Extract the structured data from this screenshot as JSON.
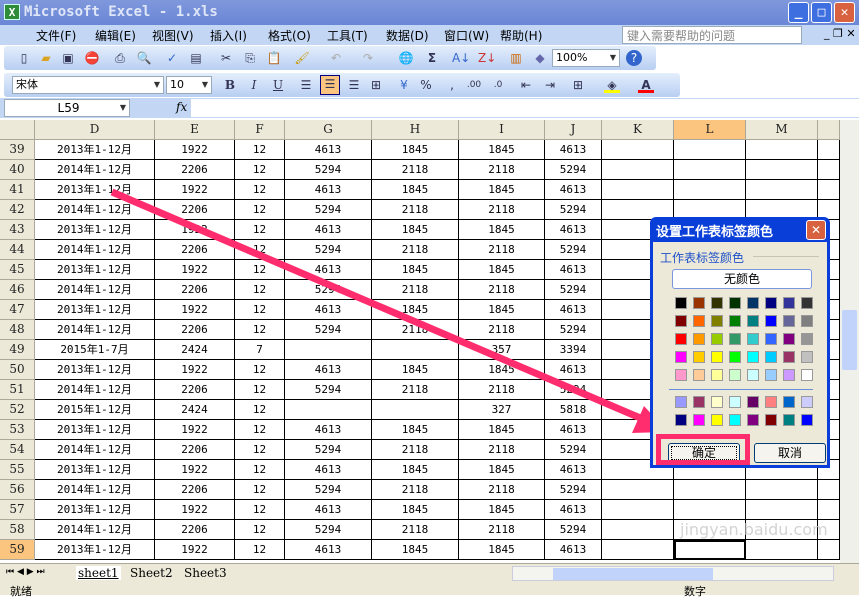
{
  "window": {
    "title": "Microsoft Excel - 1.xls",
    "minimize": "_",
    "maximize": "□",
    "close": "✕"
  },
  "menu": {
    "items": [
      "文件(F)",
      "编辑(E)",
      "视图(V)",
      "插入(I)",
      "格式(O)",
      "工具(T)",
      "数据(D)",
      "窗口(W)",
      "帮助(H)"
    ],
    "help_placeholder": "键入需要帮助的问题"
  },
  "toolbar": {
    "zoom": "100%",
    "font": "宋体",
    "size": "10",
    "bold": "B",
    "italic": "I",
    "underline": "U",
    "percent": "%",
    "comma": ",",
    "sum": "Σ"
  },
  "formula": {
    "name_box": "L59",
    "fx": "fx",
    "value": ""
  },
  "columns": [
    "D",
    "E",
    "F",
    "G",
    "H",
    "I",
    "J",
    "K",
    "L",
    "M"
  ],
  "active_column": "L",
  "rows": [
    {
      "n": "39",
      "c": [
        "2013年1-12月",
        "1922",
        "12",
        "4613",
        "1845",
        "1845",
        "4613"
      ]
    },
    {
      "n": "40",
      "c": [
        "2014年1-12月",
        "2206",
        "12",
        "5294",
        "2118",
        "2118",
        "5294"
      ]
    },
    {
      "n": "41",
      "c": [
        "2013年1-12月",
        "1922",
        "12",
        "4613",
        "1845",
        "1845",
        "4613"
      ]
    },
    {
      "n": "42",
      "c": [
        "2014年1-12月",
        "2206",
        "12",
        "5294",
        "2118",
        "2118",
        "5294"
      ]
    },
    {
      "n": "43",
      "c": [
        "2013年1-12月",
        "1922",
        "12",
        "4613",
        "1845",
        "1845",
        "4613"
      ]
    },
    {
      "n": "44",
      "c": [
        "2014年1-12月",
        "2206",
        "12",
        "5294",
        "2118",
        "2118",
        "5294"
      ]
    },
    {
      "n": "45",
      "c": [
        "2013年1-12月",
        "1922",
        "12",
        "4613",
        "1845",
        "1845",
        "4613"
      ]
    },
    {
      "n": "46",
      "c": [
        "2014年1-12月",
        "2206",
        "12",
        "5294",
        "2118",
        "2118",
        "5294"
      ]
    },
    {
      "n": "47",
      "c": [
        "2013年1-12月",
        "1922",
        "12",
        "4613",
        "1845",
        "1845",
        "4613"
      ]
    },
    {
      "n": "48",
      "c": [
        "2014年1-12月",
        "2206",
        "12",
        "5294",
        "2118",
        "2118",
        "5294"
      ]
    },
    {
      "n": "49",
      "c": [
        "2015年1-7月",
        "2424",
        "7",
        "",
        "",
        "357",
        "3394"
      ]
    },
    {
      "n": "50",
      "c": [
        "2013年1-12月",
        "1922",
        "12",
        "4613",
        "1845",
        "1845",
        "4613"
      ]
    },
    {
      "n": "51",
      "c": [
        "2014年1-12月",
        "2206",
        "12",
        "5294",
        "2118",
        "2118",
        "5294"
      ]
    },
    {
      "n": "52",
      "c": [
        "2015年1-12月",
        "2424",
        "12",
        "",
        "",
        "327",
        "5818"
      ]
    },
    {
      "n": "53",
      "c": [
        "2013年1-12月",
        "1922",
        "12",
        "4613",
        "1845",
        "1845",
        "4613"
      ]
    },
    {
      "n": "54",
      "c": [
        "2014年1-12月",
        "2206",
        "12",
        "5294",
        "2118",
        "2118",
        "5294"
      ]
    },
    {
      "n": "55",
      "c": [
        "2013年1-12月",
        "1922",
        "12",
        "4613",
        "1845",
        "1845",
        "4613"
      ]
    },
    {
      "n": "56",
      "c": [
        "2014年1-12月",
        "2206",
        "12",
        "5294",
        "2118",
        "2118",
        "5294"
      ]
    },
    {
      "n": "57",
      "c": [
        "2013年1-12月",
        "1922",
        "12",
        "4613",
        "1845",
        "1845",
        "4613"
      ]
    },
    {
      "n": "58",
      "c": [
        "2014年1-12月",
        "2206",
        "12",
        "5294",
        "2118",
        "2118",
        "5294"
      ]
    },
    {
      "n": "59",
      "c": [
        "2013年1-12月",
        "1922",
        "12",
        "4613",
        "1845",
        "1845",
        "4613"
      ]
    }
  ],
  "dialog": {
    "title": "设置工作表标签颜色",
    "group": "工作表标签颜色",
    "no_color": "无颜色",
    "ok": "确定",
    "cancel": "取消",
    "palette": [
      "#000000",
      "#993300",
      "#333300",
      "#003300",
      "#003366",
      "#000080",
      "#333399",
      "#333333",
      "#800000",
      "#FF6600",
      "#808000",
      "#008000",
      "#008080",
      "#0000FF",
      "#666699",
      "#808080",
      "#FF0000",
      "#FF9900",
      "#99CC00",
      "#339966",
      "#33CCCC",
      "#3366FF",
      "#800080",
      "#969696",
      "#FF00FF",
      "#FFCC00",
      "#FFFF00",
      "#00FF00",
      "#00FFFF",
      "#00CCFF",
      "#993366",
      "#C0C0C0",
      "#FF99CC",
      "#FFCC99",
      "#FFFF99",
      "#CCFFCC",
      "#CCFFFF",
      "#99CCFF",
      "#CC99FF",
      "#FFFFFF"
    ],
    "extra": [
      "#9999FF",
      "#993366",
      "#FFFFCC",
      "#CCFFFF",
      "#660066",
      "#FF8080",
      "#0066CC",
      "#CCCCFF",
      "#000080",
      "#FF00FF",
      "#FFFF00",
      "#00FFFF",
      "#800080",
      "#800000",
      "#008080",
      "#0000FF"
    ]
  },
  "sheets": [
    "sheet1",
    "Sheet2",
    "Sheet3"
  ],
  "status": {
    "ready": "就绪",
    "mode": "数字"
  },
  "annotation_color": "#FF2D6E",
  "watermark": "jingyan.baidu.com"
}
